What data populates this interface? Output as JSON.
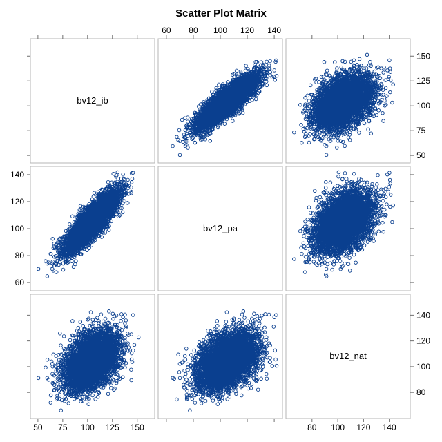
{
  "chart_data": {
    "type": "scatter",
    "title": "Scatter Plot Matrix",
    "variables": [
      "bv12_ib",
      "bv12_pa",
      "bv12_nat"
    ],
    "ranges": {
      "bv12_ib": [
        48,
        162
      ],
      "bv12_pa": [
        58,
        142
      ],
      "bv12_nat": [
        64,
        152
      ]
    },
    "ticks": {
      "bv12_ib": [
        50,
        75,
        100,
        125,
        150
      ],
      "bv12_pa": [
        60,
        80,
        100,
        120,
        140
      ],
      "bv12_nat": [
        80,
        100,
        120,
        140
      ]
    },
    "axis_labels": {
      "top": {
        "column": 1,
        "variable": "bv12_pa",
        "ticks": [
          "60",
          "80",
          "100",
          "120",
          "140"
        ]
      },
      "right_top": {
        "row": 0,
        "variable": "bv12_ib",
        "ticks": [
          "50",
          "75",
          "100",
          "125",
          "150"
        ]
      },
      "left_middle": {
        "row": 1,
        "variable": "bv12_pa",
        "ticks": [
          "60",
          "80",
          "100",
          "120",
          "140"
        ]
      },
      "right_bottom": {
        "row": 2,
        "variable": "bv12_nat",
        "ticks": [
          "80",
          "100",
          "120",
          "140"
        ]
      },
      "bottom_left": {
        "column": 0,
        "variable": "bv12_ib",
        "ticks": [
          "50",
          "75",
          "100",
          "125",
          "150"
        ]
      },
      "bottom_right": {
        "column": 2,
        "variable": "bv12_nat",
        "ticks": [
          "80",
          "100",
          "120",
          "140"
        ]
      }
    },
    "series": [
      {
        "name": "",
        "marker": "open-circle",
        "color": "#0a3f8f",
        "approx_points": 5000,
        "means": {
          "bv12_ib": 104,
          "bv12_pa": 105,
          "bv12_nat": 104
        },
        "std_dev": {
          "bv12_ib": 13,
          "bv12_pa": 11,
          "bv12_nat": 11
        },
        "correlations": {
          "bv12_ib__bv12_pa": 0.85,
          "bv12_ib__bv12_nat": 0.4,
          "bv12_pa__bv12_nat": 0.42
        }
      }
    ],
    "grid": false,
    "legend": "none"
  },
  "colors": {
    "marker": "#0a3f8f",
    "panel_border": "#b4b4b4",
    "axis": "#6e6e6e",
    "text": "#000000"
  }
}
